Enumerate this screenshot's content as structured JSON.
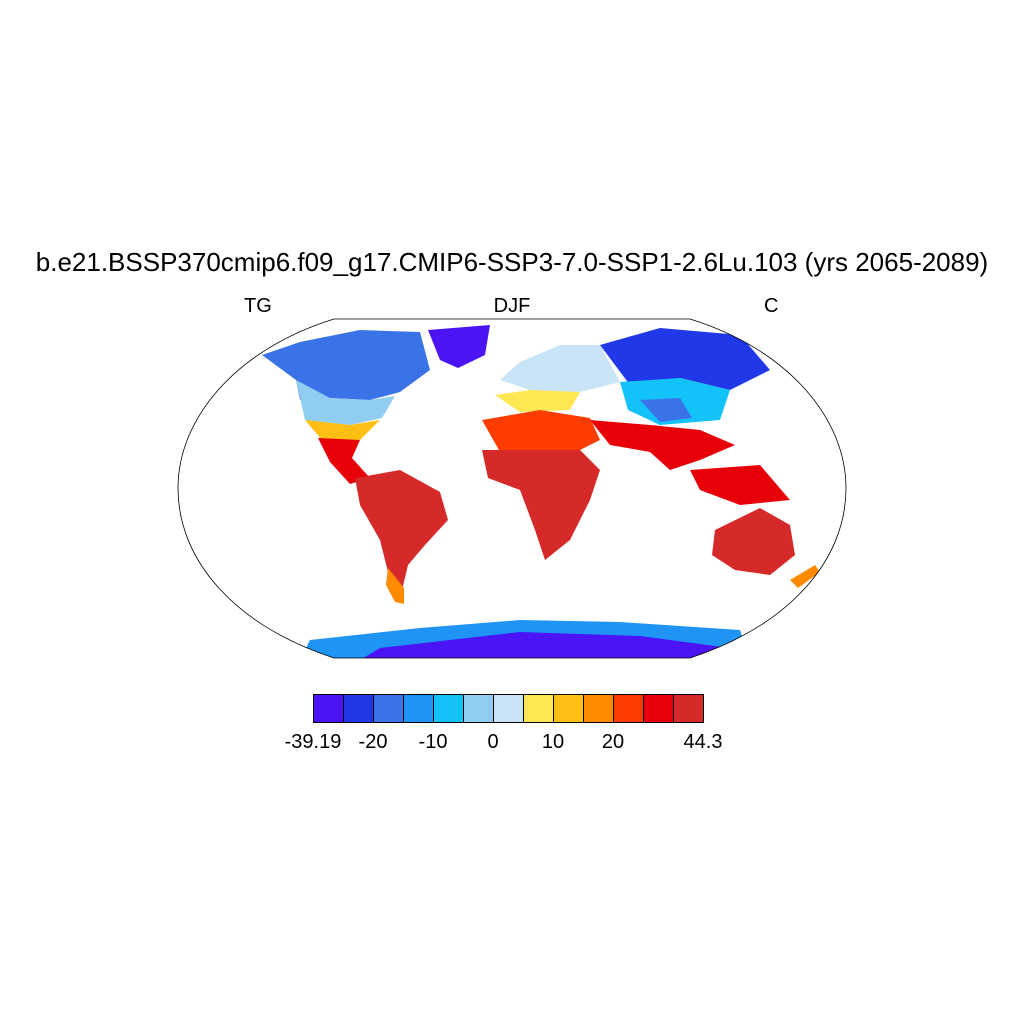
{
  "title": "b.e21.BSSP370cmip6.f09_g17.CMIP6-SSP3-7.0-SSP1-2.6Lu.103 (yrs 2065-2089)",
  "left_label": "TG",
  "center_label": "DJF",
  "right_label": "C",
  "colorbar": {
    "colors": [
      "#4a14f5",
      "#2138e8",
      "#3a72e8",
      "#1f94f5",
      "#12c2f8",
      "#90cdf0",
      "#c9e4f6",
      "#ffe653",
      "#ffbf14",
      "#ff8a00",
      "#ff3c00",
      "#e80008",
      "#d62929"
    ],
    "labels": [
      {
        "text": "-39.19",
        "edge": 0
      },
      {
        "text": "-20",
        "edge": 2
      },
      {
        "text": "-10",
        "edge": 4
      },
      {
        "text": "0",
        "edge": 6
      },
      {
        "text": "10",
        "edge": 8
      },
      {
        "text": "20",
        "edge": 10
      },
      {
        "text": "44.3",
        "edge": 13
      }
    ]
  }
}
